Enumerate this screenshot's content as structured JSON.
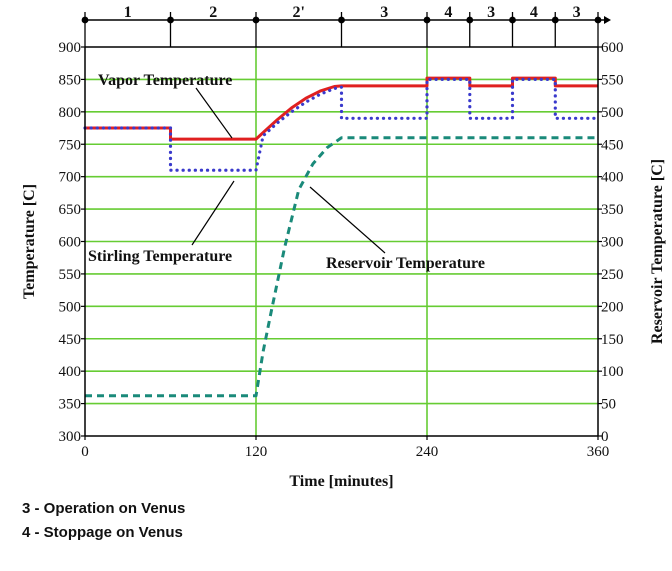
{
  "chart_data": {
    "type": "line",
    "xlabel": "Time [minutes]",
    "ylabel_left": "Temperature [C]",
    "ylabel_right": "Reservoir Temperature [C]",
    "xlim": [
      0,
      360
    ],
    "ylim_left": [
      300,
      900
    ],
    "ylim_right": [
      0,
      600
    ],
    "x_ticks": [
      0,
      120,
      240,
      360
    ],
    "y_ticks_left": [
      300,
      350,
      400,
      450,
      500,
      550,
      600,
      650,
      700,
      750,
      800,
      850,
      900
    ],
    "y_ticks_right": [
      0,
      50,
      100,
      150,
      200,
      250,
      300,
      350,
      400,
      450,
      500,
      550,
      600
    ],
    "grid": true,
    "grid_color": "#66cc33",
    "phase_markers": [
      0,
      60,
      120,
      180,
      240,
      270,
      300,
      330,
      360
    ],
    "phase_labels": [
      "1",
      "2",
      "2'",
      "3",
      "4",
      "3",
      "4",
      "3"
    ],
    "series": [
      {
        "name": "Vapor Temperature",
        "axis": "left",
        "color": "#e02020",
        "style": "solid",
        "x": [
          0,
          60,
          60,
          120,
          125,
          135,
          145,
          155,
          165,
          175,
          180,
          240,
          240,
          270,
          270,
          300,
          300,
          330,
          330,
          360
        ],
        "y": [
          775,
          775,
          758,
          758,
          768,
          788,
          806,
          821,
          832,
          839,
          840,
          840,
          852,
          852,
          840,
          840,
          852,
          852,
          840,
          840
        ]
      },
      {
        "name": "Stirling Temperature",
        "axis": "left",
        "color": "#3a3acc",
        "style": "dotted",
        "x": [
          0,
          60,
          60,
          120,
          125,
          135,
          145,
          155,
          165,
          175,
          180,
          180,
          240,
          240,
          270,
          270,
          300,
          300,
          330,
          330,
          360
        ],
        "y": [
          775,
          775,
          710,
          710,
          763,
          783,
          800,
          815,
          827,
          836,
          838,
          790,
          790,
          850,
          850,
          790,
          790,
          850,
          850,
          790,
          790
        ]
      },
      {
        "name": "Reservoir Temperature",
        "axis": "right",
        "color": "#1a8a7a",
        "style": "dashed",
        "x": [
          0,
          120,
          125,
          130,
          140,
          150,
          160,
          170,
          180,
          360
        ],
        "y": [
          62,
          62,
          130,
          185,
          290,
          380,
          420,
          445,
          460,
          460
        ]
      }
    ],
    "annotations": [
      {
        "text": "Vapor Temperature"
      },
      {
        "text": "Stirling Temperature"
      },
      {
        "text": "Reservoir Temperature"
      }
    ]
  },
  "legend_notes": [
    "3 - Operation on Venus",
    "4 - Stoppage on Venus"
  ]
}
